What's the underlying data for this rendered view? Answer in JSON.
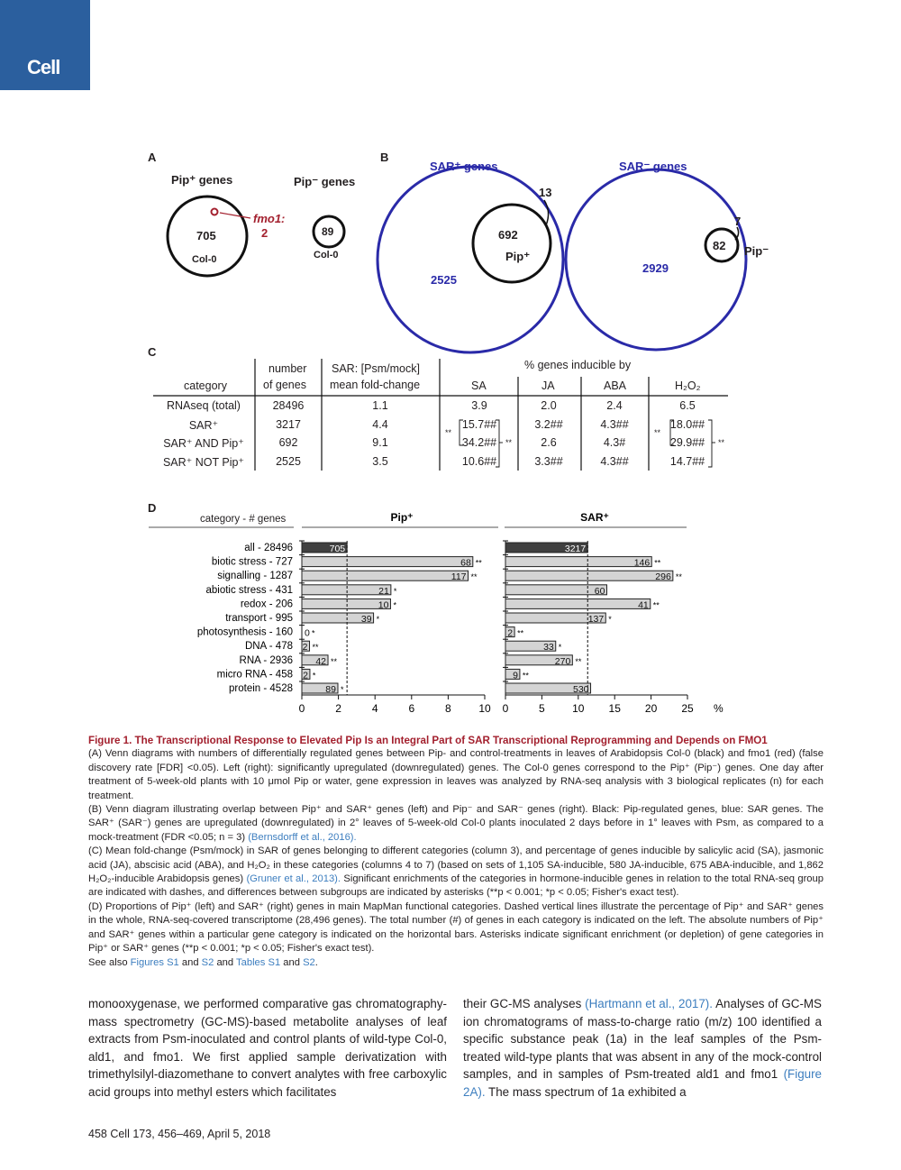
{
  "journal_logo": "Cell",
  "panelA": {
    "label": "A",
    "pip_plus_title": "Pip⁺ genes",
    "pip_minus_title": "Pip⁻ genes",
    "col0_up": "705",
    "fmo1_label": "fmo1:",
    "fmo1_count": "2",
    "col0_label": "Col-0",
    "col0_down": "89",
    "col0_label2": "Col-0"
  },
  "panelB": {
    "label": "B",
    "sar_plus_title": "SAR⁺ genes",
    "sar_minus_title": "SAR⁻ genes",
    "overlap_up": "692",
    "pip_only_up": "13",
    "sar_only_up": "2525",
    "pip_plus_label": "Pip⁺",
    "overlap_down": "82",
    "pip_only_down": "7",
    "sar_only_down": "2929",
    "pip_minus_label": "Pip⁻",
    "sar_color": "#2a2aa8"
  },
  "panelC": {
    "label": "C",
    "headers": {
      "category": "category",
      "number1": "number",
      "number2": "of genes",
      "sar1": "SAR: [Psm/mock]",
      "sar2": "mean fold-change",
      "inducible": "% genes inducible by",
      "sa": "SA",
      "ja": "JA",
      "aba": "ABA",
      "h2o2": "H₂O₂"
    },
    "rows": [
      {
        "category": "RNAseq (total)",
        "number": "28496",
        "fold": "1.1",
        "sa": "3.9",
        "ja": "2.0",
        "aba": "2.4",
        "h2o2": "6.5"
      },
      {
        "category": "SAR⁺",
        "number": "3217",
        "fold": "4.4",
        "sa": "15.7##",
        "ja": "3.2##",
        "aba": "4.3##",
        "h2o2": "18.0##"
      },
      {
        "category": "SAR⁺ AND Pip⁺",
        "number": "692",
        "fold": "9.1",
        "sa": "34.2##",
        "ja": "2.6",
        "aba": "4.3#",
        "h2o2": "29.9##"
      },
      {
        "category": "SAR⁺ NOT Pip⁺",
        "number": "2525",
        "fold": "3.5",
        "sa": "10.6##",
        "ja": "3.3##",
        "aba": "4.3##",
        "h2o2": "14.7##"
      }
    ],
    "sig_a": "**",
    "sig_b": "**",
    "sig_c": "**",
    "sig_d": "**"
  },
  "chart_data": [
    {
      "type": "bar",
      "orientation": "horizontal",
      "title": "Pip⁺",
      "xlim": [
        0,
        10
      ],
      "xticks": [
        "0",
        "2",
        "4",
        "6",
        "8",
        "10"
      ],
      "reference_line": 2.47,
      "categories": [
        "all - 28496",
        "biotic stress - 727",
        "signalling - 1287",
        "abiotic stress - 431",
        "redox - 206",
        "transport - 995",
        "photosynthesis - 160",
        "DNA - 478",
        "RNA - 2936",
        "micro RNA - 458",
        "protein - 4528"
      ],
      "values": [
        2.47,
        9.35,
        9.09,
        4.87,
        4.85,
        3.92,
        0,
        0.42,
        1.43,
        0.44,
        1.97
      ],
      "labels": [
        "705",
        "68",
        "117",
        "21",
        "10",
        "39",
        "0",
        "2",
        "42",
        "2",
        "89"
      ],
      "significance": [
        "",
        "**",
        "**",
        "*",
        "*",
        "*",
        "*",
        "**",
        "**",
        "*",
        "*"
      ]
    },
    {
      "type": "bar",
      "orientation": "horizontal",
      "title": "SAR⁺",
      "xlim": [
        0,
        25
      ],
      "xticks": [
        "0",
        "5",
        "10",
        "15",
        "20",
        "25"
      ],
      "xunit": "%",
      "reference_line": 11.29,
      "categories": [
        "all - 28496",
        "biotic stress - 727",
        "signalling - 1287",
        "abiotic stress - 431",
        "redox - 206",
        "transport - 995",
        "photosynthesis - 160",
        "DNA - 478",
        "RNA - 2936",
        "micro RNA - 458",
        "protein - 4528"
      ],
      "values": [
        11.29,
        20.08,
        23.0,
        13.92,
        19.9,
        13.77,
        1.25,
        6.9,
        9.2,
        1.97,
        11.7
      ],
      "labels": [
        "3217",
        "146",
        "296",
        "60",
        "41",
        "137",
        "2",
        "33",
        "270",
        "9",
        "530"
      ],
      "significance": [
        "",
        "**",
        "**",
        "",
        "**",
        "*",
        "**",
        "*",
        "**",
        "**",
        ""
      ]
    }
  ],
  "panelD": {
    "label": "D",
    "category_header": "category - # genes"
  },
  "caption": {
    "title": "Figure 1.  The Transcriptional Response to Elevated Pip Is an Integral Part of SAR Transcriptional Reprogramming and Depends on FMO1",
    "a": "(A) Venn diagrams with numbers of differentially regulated genes between Pip- and control-treatments in leaves of Arabidopsis Col-0 (black) and fmo1 (red) (false discovery rate [FDR] <0.05). Left (right): significantly upregulated (downregulated) genes. The Col-0 genes correspond to the Pip⁺ (Pip⁻) genes. One day after treatment of 5-week-old plants with 10 μmol Pip or water, gene expression in leaves was analyzed by RNA-seq analysis with 3 biological replicates (n) for each treatment.",
    "b": "(B) Venn diagram illustrating overlap between Pip⁺ and SAR⁺ genes (left) and Pip⁻ and SAR⁻ genes (right). Black: Pip-regulated genes, blue: SAR genes. The SAR⁺ (SAR⁻) genes are upregulated (downregulated) in 2° leaves of 5-week-old Col-0 plants inoculated 2 days before in 1° leaves with Psm, as compared to a mock-treatment (FDR <0.05; n = 3) ",
    "b_ref": "(Bernsdorff et al., 2016).",
    "c": "(C) Mean fold-change (Psm/mock) in SAR of genes belonging to different categories (column 3), and percentage of genes inducible by salicylic acid (SA), jasmonic acid (JA), abscisic acid (ABA), and H₂O₂ in these categories (columns 4 to 7) (based on sets of 1,105 SA-inducible, 580 JA-inducible, 675 ABA-inducible, and 1,862 H₂O₂-inducible Arabidopsis genes) ",
    "c_ref": "(Gruner et al., 2013).",
    "c2": " Significant enrichments of the categories in hormone-inducible genes in relation to the total RNA-seq group are indicated with dashes, and differences between subgroups are indicated by asterisks (**p < 0.001; *p < 0.05; Fisher's exact test).",
    "d": "(D) Proportions of Pip⁺ (left) and SAR⁺ (right) genes in main MapMan functional categories. Dashed vertical lines illustrate the percentage of Pip⁺ and SAR⁺ genes in the whole, RNA-seq-covered transcriptome (28,496 genes). The total number (#) of genes in each category is indicated on the left. The absolute numbers of Pip⁺ and SAR⁺ genes within a particular gene category is indicated on the horizontal bars. Asterisks indicate significant enrichment (or depletion) of gene categories in Pip⁺ or SAR⁺ genes (**p < 0.001; *p < 0.05; Fisher's exact test).",
    "see_also": "See also ",
    "fig_s1": "Figures S1",
    "and1": " and ",
    "s2": "S2",
    "and2": " and ",
    "tab_s1": "Tables S1",
    "and3": " and ",
    "tab_s2": "S2",
    "end": "."
  },
  "body": {
    "left": "monooxygenase, we performed comparative gas chromatography-mass spectrometry (GC-MS)-based metabolite analyses of leaf extracts from Psm-inoculated and control plants of wild-type Col-0, ald1, and fmo1. We first applied sample derivatization with trimethylsilyl-diazomethane to convert analytes with free carboxylic acid groups into methyl esters which facilitates",
    "right1": "their GC-MS analyses ",
    "right_ref": "(Hartmann et al., 2017).",
    "right2": " Analyses of GC-MS ion chromatograms of mass-to-charge ratio (m/z) 100 identified a specific substance peak (1a) in the leaf samples of the Psm-treated wild-type plants that was absent in any of the mock-control samples, and in samples of Psm-treated ald1 and fmo1 ",
    "right_ref2": "(Figure 2A).",
    "right3": " The mass spectrum of 1a exhibited a"
  },
  "footer": "458  Cell 173, 456–469, April 5, 2018"
}
